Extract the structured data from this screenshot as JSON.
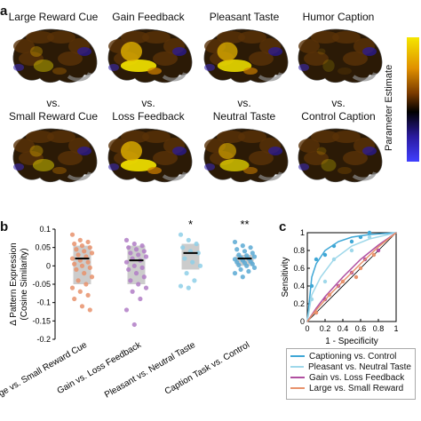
{
  "panel_a": {
    "letter": "a",
    "top_row": [
      "Large Reward Cue",
      "Gain Feedback",
      "Pleasant Taste",
      "Humor Caption"
    ],
    "vs": "vs.",
    "bottom_row": [
      "Small Reward Cue",
      "Loss Feedback",
      "Neutral Taste",
      "Control Caption"
    ],
    "colorbar_label": "Parameter Estimate",
    "colors": {
      "high": "#f5e600",
      "mid": "#7a3a00",
      "zero": "#000000",
      "low": "#2a1aa0"
    }
  },
  "panel_b": {
    "letter": "b",
    "significance": [
      "",
      "",
      "*",
      "**"
    ]
  },
  "panel_c": {
    "letter": "c",
    "legend": [
      {
        "label": "Captioning vs. Control",
        "color": "#3fa7d6"
      },
      {
        "label": "Pleasant vs. Neutral Taste",
        "color": "#9fd8ea"
      },
      {
        "label": "Gain vs. Loss Feedback",
        "color": "#b04fa0"
      },
      {
        "label": "Large vs. Small Reward",
        "color": "#e8926c"
      }
    ]
  },
  "chart_data": [
    {
      "type": "scatter",
      "panel": "b",
      "ylabel": "Δ Pattern Expression\n(Cosine Similarity)",
      "ylim": [
        -0.2,
        0.1
      ],
      "yticks": [
        -0.2,
        -0.15,
        -0.1,
        -0.05,
        0,
        0.05,
        0.1
      ],
      "yticklabels": [
        "-0.2",
        "-0.15",
        "-0.1",
        "-0.05",
        "0",
        "0.05",
        "0.1"
      ],
      "categories": [
        "Large vs. Small Reward Cue",
        "Gain vs. Loss Feedback",
        "Pleasant vs. Neutral Taste",
        "Caption Task vs. Control"
      ],
      "colors": [
        "#e8926c",
        "#b07cc6",
        "#8ecfe8",
        "#5aa9d4"
      ],
      "means": [
        0.02,
        0.015,
        0.035,
        0.02
      ],
      "ci": [
        [
          -0.05,
          0.055
        ],
        [
          -0.05,
          0.055
        ],
        [
          -0.01,
          0.06
        ],
        [
          0.0,
          0.03
        ]
      ],
      "points": [
        [
          0.085,
          0.07,
          0.065,
          0.06,
          0.055,
          0.05,
          0.045,
          0.04,
          0.035,
          0.03,
          0.025,
          0.02,
          0.015,
          0.01,
          0.005,
          0.0,
          -0.005,
          -0.01,
          -0.02,
          -0.03,
          -0.04,
          -0.05,
          -0.06,
          -0.07,
          -0.08,
          -0.09,
          -0.11,
          -0.12
        ],
        [
          0.07,
          0.06,
          0.055,
          0.05,
          0.045,
          0.04,
          0.035,
          0.03,
          0.025,
          0.02,
          0.015,
          0.01,
          0.0,
          -0.005,
          -0.01,
          -0.02,
          -0.03,
          -0.04,
          -0.05,
          -0.06,
          -0.07,
          -0.09,
          -0.12,
          -0.16
        ],
        [
          0.085,
          0.07,
          0.06,
          0.05,
          0.04,
          0.035,
          0.02,
          0.01,
          0.0,
          -0.02,
          -0.04,
          -0.055,
          -0.06
        ],
        [
          0.065,
          0.055,
          0.05,
          0.045,
          0.04,
          0.035,
          0.03,
          0.028,
          0.025,
          0.022,
          0.02,
          0.018,
          0.015,
          0.012,
          0.01,
          0.008,
          0.005,
          0.002,
          0.0,
          -0.005,
          -0.01,
          -0.015,
          -0.02,
          -0.03
        ]
      ]
    },
    {
      "type": "line",
      "panel": "c",
      "xlabel": "1 - Specificity",
      "ylabel": "Sensitivity",
      "xlim": [
        0,
        1
      ],
      "ylim": [
        0,
        1
      ],
      "xticks": [
        0,
        0.2,
        0.4,
        0.6,
        0.8,
        1
      ],
      "xticklabels": [
        "0",
        "0.2",
        "0.4",
        "0.6",
        "0.8",
        "1"
      ],
      "yticks": [
        0,
        0.2,
        0.4,
        0.6,
        0.8,
        1
      ],
      "yticklabels": [
        "0",
        "0.2",
        "0.4",
        "0.6",
        "0.8",
        "1"
      ],
      "series": [
        {
          "name": "Captioning vs. Control",
          "color": "#3fa7d6",
          "x": [
            0,
            0.05,
            0.1,
            0.2,
            0.35,
            0.5,
            0.7,
            1
          ],
          "y": [
            0,
            0.5,
            0.65,
            0.8,
            0.9,
            0.95,
            0.98,
            1
          ],
          "px": [
            0.05,
            0.1,
            0.2,
            0.3,
            0.5,
            0.6,
            0.7
          ],
          "py": [
            0.4,
            0.7,
            0.75,
            0.85,
            0.9,
            0.95,
            1.0
          ]
        },
        {
          "name": "Pleasant vs. Neutral Taste",
          "color": "#9fd8ea",
          "x": [
            0,
            0.05,
            0.15,
            0.3,
            0.5,
            0.7,
            1
          ],
          "y": [
            0,
            0.3,
            0.5,
            0.7,
            0.85,
            0.93,
            1
          ],
          "px": [
            0.05,
            0.2,
            0.3,
            0.5,
            0.7
          ],
          "py": [
            0.25,
            0.45,
            0.7,
            0.8,
            0.95
          ]
        },
        {
          "name": "Gain vs. Loss Feedback",
          "color": "#b04fa0",
          "x": [
            0,
            0.1,
            0.2,
            0.4,
            0.6,
            0.8,
            1
          ],
          "y": [
            0,
            0.15,
            0.28,
            0.5,
            0.7,
            0.86,
            1
          ],
          "px": [
            0.1,
            0.2,
            0.35,
            0.5,
            0.65,
            0.8
          ],
          "py": [
            0.1,
            0.25,
            0.4,
            0.55,
            0.7,
            0.8
          ]
        },
        {
          "name": "Large vs. Small Reward",
          "color": "#e8926c",
          "x": [
            0,
            0.1,
            0.25,
            0.4,
            0.6,
            0.8,
            1
          ],
          "y": [
            0,
            0.13,
            0.3,
            0.45,
            0.65,
            0.84,
            1
          ],
          "px": [
            0.1,
            0.25,
            0.4,
            0.55,
            0.6,
            0.75
          ],
          "py": [
            0.1,
            0.3,
            0.45,
            0.5,
            0.6,
            0.75
          ]
        }
      ],
      "diagonal": true
    }
  ]
}
